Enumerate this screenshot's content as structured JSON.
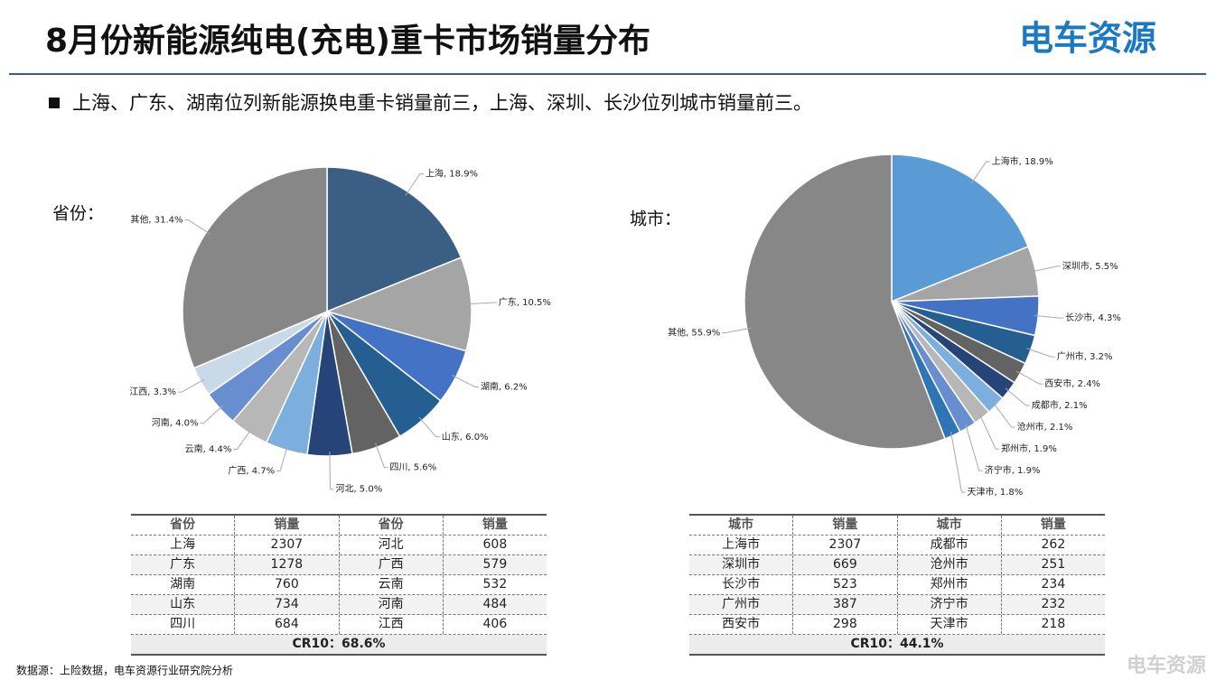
{
  "header": {
    "title": "8月份新能源纯电(充电)重卡市场销量分布",
    "logo": "电车资源"
  },
  "bullet": "上海、广东、湖南位列新能源换电重卡销量前三，上海、深圳、长沙位列城市销量前三。",
  "chart_data": [
    {
      "type": "pie",
      "label": "省份：",
      "categories": [
        "上海",
        "广东",
        "湖南",
        "山东",
        "四川",
        "河北",
        "广西",
        "云南",
        "河南",
        "江西",
        "其他"
      ],
      "values": [
        18.9,
        10.5,
        6.2,
        6.0,
        5.6,
        5.0,
        4.7,
        4.4,
        4.0,
        3.3,
        31.4
      ],
      "value_labels": [
        "上海, 18.9%",
        "广东, 10.5%",
        "湖南, 6.2%",
        "山东, 6.0%",
        "四川, 5.6%",
        "河北, 5.0%",
        "广西, 4.7%",
        "云南, 4.4%",
        "河南, 4.0%",
        "江西, 3.3%",
        "其他, 31.4%"
      ],
      "colors": [
        "#3b5f84",
        "#a5a5a5",
        "#4472c4",
        "#255e91",
        "#636363",
        "#264478",
        "#7cafdd",
        "#b7b7b7",
        "#698ed0",
        "#c9d9e8",
        "#878787"
      ]
    },
    {
      "type": "pie",
      "label": "城市：",
      "categories": [
        "上海市",
        "深圳市",
        "长沙市",
        "广州市",
        "西安市",
        "成都市",
        "沧州市",
        "郑州市",
        "济宁市",
        "天津市",
        "其他"
      ],
      "values": [
        18.9,
        5.5,
        4.3,
        3.2,
        2.4,
        2.1,
        2.1,
        1.9,
        1.9,
        1.8,
        55.9
      ],
      "value_labels": [
        "上海市, 18.9%",
        "深圳市, 5.5%",
        "长沙市, 4.3%",
        "广州市, 3.2%",
        "西安市, 2.4%",
        "成都市, 2.1%",
        "沧州市, 2.1%",
        "郑州市, 1.9%",
        "济宁市, 1.9%",
        "天津市, 1.8%",
        "其他, 55.9%"
      ],
      "colors": [
        "#5b9bd5",
        "#a5a5a5",
        "#4472c4",
        "#255e91",
        "#636363",
        "#264478",
        "#7cafdd",
        "#b7b7b7",
        "#698ed0",
        "#2e75b6",
        "#878787"
      ]
    }
  ],
  "tables": [
    {
      "header": [
        "省份",
        "销量",
        "省份",
        "销量"
      ],
      "rows": [
        [
          "上海",
          2307,
          "河北",
          608
        ],
        [
          "广东",
          1278,
          "广西",
          579
        ],
        [
          "湖南",
          760,
          "云南",
          532
        ],
        [
          "山东",
          734,
          "河南",
          484
        ],
        [
          "四川",
          684,
          "江西",
          406
        ]
      ],
      "footer": "CR10：68.6%"
    },
    {
      "header": [
        "城市",
        "销量",
        "城市",
        "销量"
      ],
      "rows": [
        [
          "上海市",
          2307,
          "成都市",
          262
        ],
        [
          "深圳市",
          669,
          "沧州市",
          251
        ],
        [
          "长沙市",
          523,
          "郑州市",
          234
        ],
        [
          "广州市",
          387,
          "济宁市",
          232
        ],
        [
          "西安市",
          298,
          "天津市",
          218
        ]
      ],
      "footer": "CR10：44.1%"
    }
  ],
  "source": "数据源：上险数据，电车资源行业研究院分析",
  "watermark": "电车资源"
}
